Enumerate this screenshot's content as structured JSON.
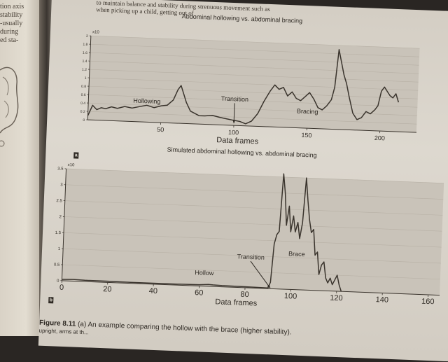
{
  "left_page": {
    "lines": [
      "tion axis",
      "stability",
      "-usually",
      "during",
      "ed sta-"
    ]
  },
  "top_text": {
    "line1": "to maintain balance and stability during strenuous movement such as",
    "line2": "when picking up a child, getting out of"
  },
  "panel_labels": [
    "a",
    "b"
  ],
  "chart_data": [
    {
      "type": "line",
      "title": "Abdominal hollowing vs. abdominal bracing",
      "xlabel": "Data frames",
      "ylabel": "",
      "y_exponent": "x10",
      "xlim": [
        0,
        225
      ],
      "ylim": [
        0,
        2.0
      ],
      "x_ticks": [
        50,
        100,
        150,
        200
      ],
      "y_ticks": [
        0,
        0.2,
        0.4,
        0.6,
        0.8,
        1.0,
        1.2,
        1.4,
        1.6,
        1.8,
        2.0
      ],
      "y_tick_labels": [
        "0",
        "0.2",
        "0.4",
        "0.6",
        "0.8",
        "1",
        "1.2",
        "1.4",
        "1.6",
        "1.8",
        "2"
      ],
      "grid": true,
      "annotations": [
        {
          "text": "Hollowing",
          "x": 40,
          "y": 0.45
        },
        {
          "text": "Transition",
          "x": 100,
          "y": 0.58,
          "arrow_to": [
            100,
            0.05
          ]
        },
        {
          "text": "Bracing",
          "x": 150,
          "y": 0.35
        }
      ],
      "series": [
        {
          "x": [
            0,
            3,
            6,
            9,
            12,
            16,
            20,
            25,
            30,
            35,
            40,
            45,
            50,
            54,
            58,
            61,
            63,
            65,
            67,
            70,
            73,
            76,
            80,
            85,
            90,
            95,
            100,
            104,
            108,
            112,
            116,
            120,
            124,
            127,
            130,
            133,
            136,
            139,
            142,
            145,
            148,
            151,
            154,
            157,
            160,
            163,
            166,
            168,
            170,
            172,
            174,
            176,
            178,
            181,
            184,
            187,
            190,
            193,
            196,
            198,
            200,
            202,
            204,
            206,
            208,
            210,
            212
          ],
          "y": [
            0.1,
            0.35,
            0.25,
            0.3,
            0.28,
            0.33,
            0.3,
            0.35,
            0.32,
            0.36,
            0.4,
            0.35,
            0.4,
            0.42,
            0.55,
            0.8,
            0.9,
            0.7,
            0.5,
            0.3,
            0.25,
            0.2,
            0.2,
            0.22,
            0.18,
            0.15,
            0.12,
            0.1,
            0.05,
            0.12,
            0.3,
            0.6,
            0.85,
            1.0,
            0.9,
            0.95,
            0.75,
            0.85,
            0.7,
            0.65,
            0.75,
            0.85,
            0.7,
            0.5,
            0.45,
            0.55,
            0.7,
            1.0,
            1.9,
            1.6,
            1.3,
            1.1,
            0.8,
            0.4,
            0.25,
            0.3,
            0.45,
            0.4,
            0.5,
            0.6,
            0.95,
            1.05,
            0.95,
            0.85,
            0.8,
            0.9,
            0.7
          ]
        }
      ]
    },
    {
      "type": "line",
      "title": "Simulated abdominal hollowing vs. abdominal bracing",
      "xlabel": "Data frames",
      "ylabel": "",
      "y_exponent": "x10",
      "xlim": [
        0,
        165
      ],
      "ylim": [
        0,
        3.5
      ],
      "x_ticks": [
        0,
        20,
        40,
        60,
        80,
        100,
        120,
        140,
        160
      ],
      "y_ticks": [
        0,
        0.5,
        1.0,
        1.5,
        2.0,
        2.5,
        3.0,
        3.5
      ],
      "y_tick_labels": [
        "0",
        "0.5",
        "1",
        "1.5",
        "2",
        "2.5",
        "3",
        "3.5"
      ],
      "grid": true,
      "annotations": [
        {
          "text": "Hollow",
          "x": 62,
          "y": 0.35
        },
        {
          "text": "Transition",
          "x": 82,
          "y": 0.9,
          "arrow_to": [
            91,
            0.02
          ]
        },
        {
          "text": "Brace",
          "x": 102,
          "y": 1.05
        }
      ],
      "series": [
        {
          "x": [
            0,
            5,
            10,
            20,
            30,
            40,
            50,
            60,
            64,
            66,
            70,
            80,
            90,
            91,
            92,
            93,
            94,
            95,
            96,
            97,
            98,
            99,
            100,
            101,
            102,
            103,
            104,
            105,
            106,
            107,
            108,
            109,
            110,
            111,
            112,
            113,
            114,
            115,
            116,
            117,
            118,
            119,
            120,
            121,
            122
          ],
          "y": [
            0.04,
            0.05,
            0.04,
            0.04,
            0.03,
            0.03,
            0.03,
            0.04,
            0.06,
            0.05,
            0.04,
            0.03,
            0.02,
            0.2,
            1.4,
            1.7,
            1.8,
            3.6,
            3.0,
            2.0,
            2.6,
            1.8,
            2.3,
            1.8,
            2.1,
            1.6,
            2.1,
            3.5,
            2.8,
            2.2,
            1.8,
            1.9,
            1.1,
            1.2,
            0.5,
            0.8,
            0.9,
            0.4,
            0.25,
            0.4,
            0.2,
            0.35,
            0.5,
            0.2,
            0.0
          ]
        }
      ]
    }
  ],
  "caption": {
    "figure_number": "Figure 8.11",
    "text": "(a) An example comparing the hollow with the brace (higher stability).",
    "line2": "upright, arms at th..."
  }
}
